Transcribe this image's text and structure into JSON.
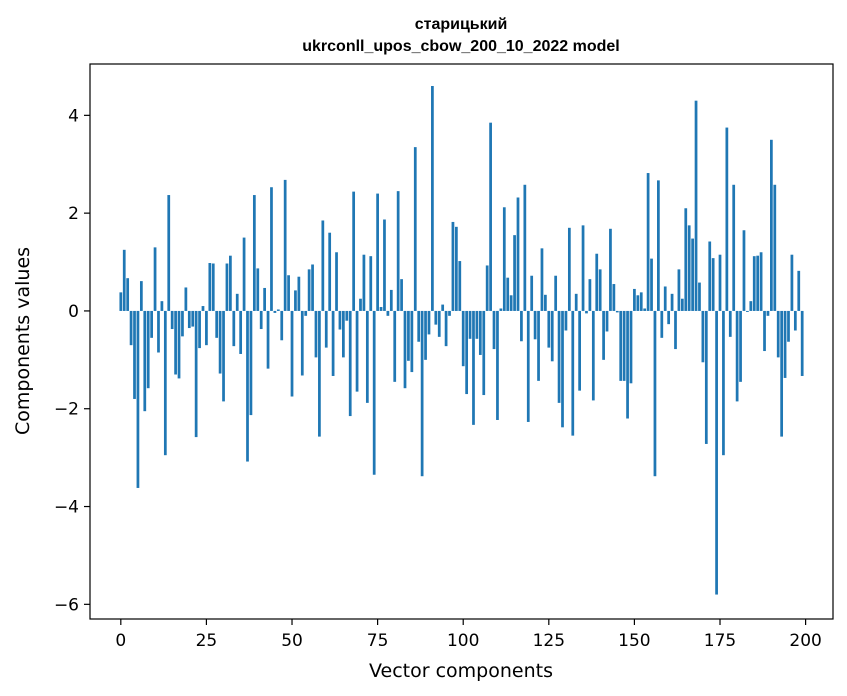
{
  "chart_data": {
    "type": "bar",
    "title": "старицький",
    "subtitle": "ukrconll_upos_cbow_200_10_2022 model",
    "xlabel": "Vector components",
    "ylabel": "Components values",
    "xlim": [
      -9,
      208
    ],
    "ylim": [
      -6.3,
      5.05
    ],
    "xticks": [
      0,
      25,
      50,
      75,
      100,
      125,
      150,
      175,
      200
    ],
    "yticks": [
      -6,
      -4,
      -2,
      0,
      2,
      4
    ],
    "ytick_labels": [
      "−6",
      "−4",
      "−2",
      "0",
      "2",
      "4"
    ],
    "grid": false,
    "bar_color": "#1f77b4",
    "x": [
      0,
      1,
      2,
      3,
      4,
      5,
      6,
      7,
      8,
      9,
      10,
      11,
      12,
      13,
      14,
      15,
      16,
      17,
      18,
      19,
      20,
      21,
      22,
      23,
      24,
      25,
      26,
      27,
      28,
      29,
      30,
      31,
      32,
      33,
      34,
      35,
      36,
      37,
      38,
      39,
      40,
      41,
      42,
      43,
      44,
      45,
      46,
      47,
      48,
      49,
      50,
      51,
      52,
      53,
      54,
      55,
      56,
      57,
      58,
      59,
      60,
      61,
      62,
      63,
      64,
      65,
      66,
      67,
      68,
      69,
      70,
      71,
      72,
      73,
      74,
      75,
      76,
      77,
      78,
      79,
      80,
      81,
      82,
      83,
      84,
      85,
      86,
      87,
      88,
      89,
      90,
      91,
      92,
      93,
      94,
      95,
      96,
      97,
      98,
      99,
      100,
      101,
      102,
      103,
      104,
      105,
      106,
      107,
      108,
      109,
      110,
      111,
      112,
      113,
      114,
      115,
      116,
      117,
      118,
      119,
      120,
      121,
      122,
      123,
      124,
      125,
      126,
      127,
      128,
      129,
      130,
      131,
      132,
      133,
      134,
      135,
      136,
      137,
      138,
      139,
      140,
      141,
      142,
      143,
      144,
      145,
      146,
      147,
      148,
      149,
      150,
      151,
      152,
      153,
      154,
      155,
      156,
      157,
      158,
      159,
      160,
      161,
      162,
      163,
      164,
      165,
      166,
      167,
      168,
      169,
      170,
      171,
      172,
      173,
      174,
      175,
      176,
      177,
      178,
      179,
      180,
      181,
      182,
      183,
      184,
      185,
      186,
      187,
      188,
      189,
      190,
      191,
      192,
      193,
      194,
      195,
      196,
      197,
      198,
      199
    ],
    "values": [
      0.38,
      1.25,
      0.67,
      -0.7,
      -1.8,
      -3.62,
      0.61,
      -2.05,
      -1.58,
      -0.55,
      1.3,
      -0.85,
      0.2,
      -2.95,
      2.37,
      -0.37,
      -1.3,
      -1.38,
      -0.52,
      0.48,
      -0.35,
      -0.32,
      -2.58,
      -0.76,
      0.1,
      -0.7,
      0.98,
      0.97,
      -0.55,
      -1.28,
      -1.85,
      0.97,
      1.13,
      -0.72,
      0.35,
      -0.88,
      1.5,
      -3.08,
      -2.13,
      2.37,
      0.87,
      -0.37,
      0.47,
      -1.18,
      2.53,
      -0.04,
      0.03,
      -0.6,
      2.68,
      0.73,
      -1.75,
      0.42,
      0.7,
      -1.32,
      -0.1,
      0.85,
      0.95,
      -0.95,
      -2.57,
      1.85,
      -0.75,
      1.6,
      -1.33,
      1.2,
      -0.38,
      -0.95,
      -0.2,
      -2.15,
      2.44,
      -1.65,
      0.25,
      1.15,
      -1.88,
      1.12,
      -3.35,
      2.4,
      0.08,
      1.87,
      -0.1,
      0.43,
      -1.45,
      2.45,
      0.65,
      -1.58,
      -1.02,
      -1.25,
      3.35,
      -0.63,
      -3.38,
      -1.0,
      -0.48,
      4.6,
      -0.28,
      -0.53,
      0.13,
      -0.72,
      -0.1,
      1.82,
      1.72,
      1.02,
      -1.13,
      -1.7,
      -0.57,
      -2.33,
      -0.57,
      -0.9,
      -1.72,
      0.93,
      3.85,
      -0.78,
      -2.23,
      0.05,
      2.12,
      0.68,
      0.32,
      1.55,
      2.32,
      -0.62,
      2.58,
      -2.27,
      0.72,
      -0.58,
      -1.43,
      1.28,
      0.33,
      -0.75,
      -1.03,
      0.72,
      -1.88,
      -2.38,
      -0.4,
      1.7,
      -2.55,
      0.35,
      -1.63,
      1.75,
      -0.05,
      0.65,
      -1.83,
      1.17,
      0.85,
      -1.0,
      -0.42,
      1.68,
      0.55,
      -0.03,
      -1.43,
      -1.43,
      -2.2,
      -1.48,
      0.45,
      0.32,
      0.38,
      0.05,
      2.82,
      1.07,
      -3.38,
      2.67,
      -0.55,
      0.5,
      -0.27,
      0.35,
      -0.78,
      0.85,
      0.25,
      2.1,
      1.75,
      1.48,
      4.3,
      0.58,
      -1.05,
      -2.72,
      1.42,
      1.08,
      -5.8,
      1.15,
      -2.95,
      3.75,
      -0.53,
      2.58,
      -1.85,
      -1.45,
      1.65,
      -0.02,
      0.2,
      1.12,
      1.13,
      1.2,
      -0.82,
      -0.1,
      3.5,
      2.58,
      -0.95,
      -2.57,
      -1.37,
      -0.63,
      1.15,
      -0.4,
      0.82,
      -1.33
    ]
  }
}
